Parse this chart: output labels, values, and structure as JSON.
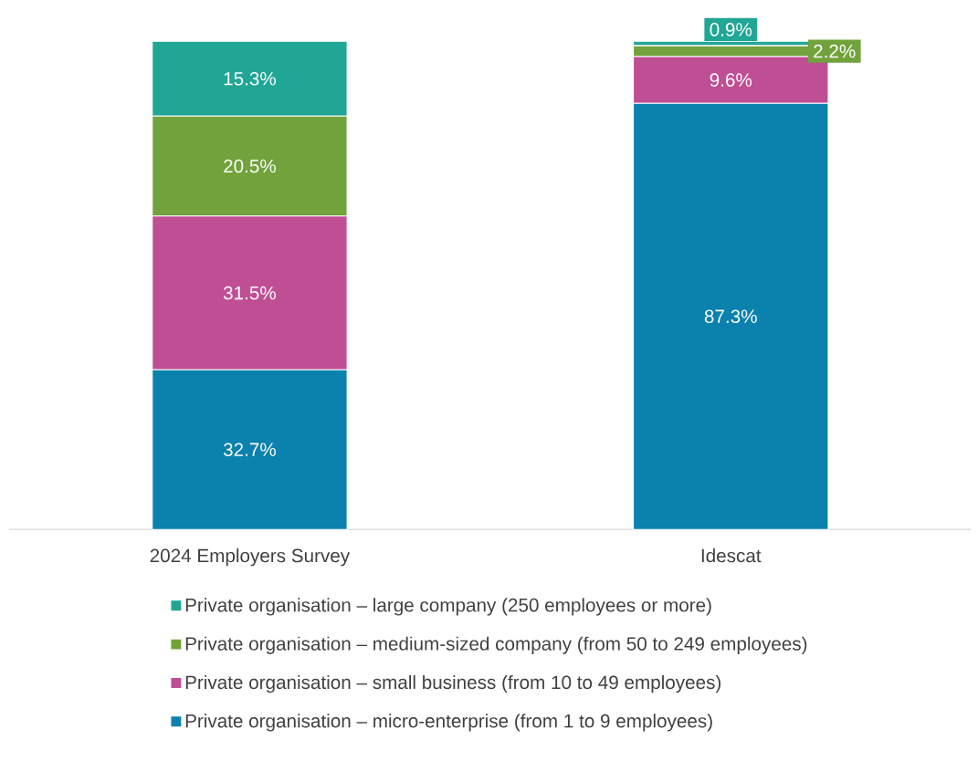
{
  "chart_data": {
    "type": "bar",
    "stacked": true,
    "legend": "bottom",
    "categories": [
      "2024 Employers Survey",
      "Idescat"
    ],
    "series": [
      {
        "name": "Private organisation – micro-enterprise (from 1 to 9 employees)",
        "color": "#0b81ad",
        "values": [
          32.7,
          87.3
        ],
        "value_labels": [
          "32.7%",
          "87.3%"
        ]
      },
      {
        "name": "Private organisation – small business (from 10 to 49 employees)",
        "color": "#bf4e94",
        "values": [
          31.5,
          9.6
        ],
        "value_labels": [
          "31.5%",
          "9.6%"
        ]
      },
      {
        "name": "Private organisation – medium-sized company (from 50 to 249 employees)",
        "color": "#71a23b",
        "values": [
          20.5,
          2.2
        ],
        "value_labels": [
          "20.5%",
          "2.2%"
        ]
      },
      {
        "name": "Private organisation – large company (250 employees or more)",
        "color": "#21a695",
        "values": [
          15.3,
          0.9
        ],
        "value_labels": [
          "15.3%",
          "0.9%"
        ]
      }
    ]
  }
}
